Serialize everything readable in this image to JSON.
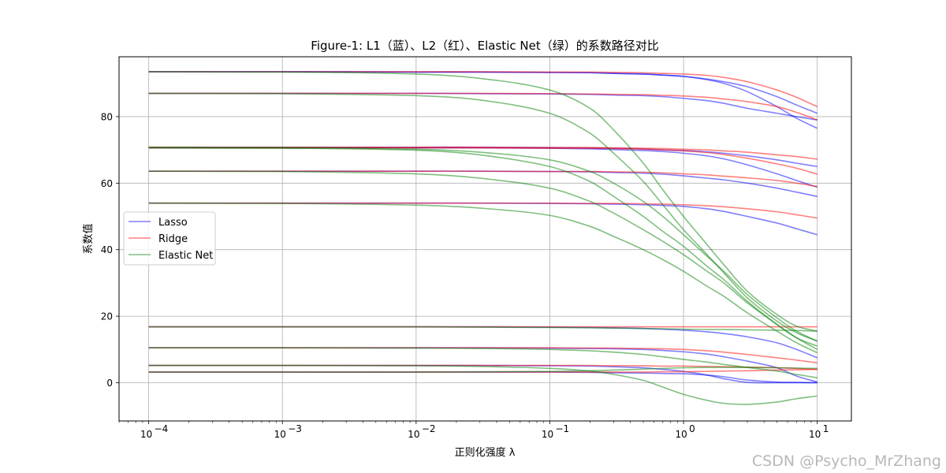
{
  "watermark": "CSDN @Psycho_MrZhang",
  "chart_data": {
    "type": "line",
    "title": "Figure-1: L1（蓝）、L2（红）、Elastic Net（绿）的系数路径对比",
    "xlabel": "正则化强度 λ",
    "ylabel": "系数值",
    "xscale": "log",
    "xlim": [
      6e-05,
      18
    ],
    "ylim": [
      -11.5,
      98
    ],
    "grid": true,
    "legend_position": "center-left",
    "x_ticks": [
      {
        "value": 0.0001,
        "base": "10",
        "exp": "−4"
      },
      {
        "value": 0.001,
        "base": "10",
        "exp": "−3"
      },
      {
        "value": 0.01,
        "base": "10",
        "exp": "−2"
      },
      {
        "value": 0.1,
        "base": "10",
        "exp": "−1"
      },
      {
        "value": 1,
        "base": "10",
        "exp": "0"
      },
      {
        "value": 10,
        "base": "10",
        "exp": "1"
      }
    ],
    "y_ticks": [
      0,
      20,
      40,
      60,
      80
    ],
    "lambda_grid": [
      0.0001,
      0.001,
      0.01,
      0.03,
      0.1,
      0.2,
      0.3,
      0.5,
      0.7,
      1,
      1.5,
      2,
      3,
      5,
      7,
      10
    ],
    "series": [
      {
        "name": "Lasso",
        "color": "#0000ff",
        "alpha": 0.5,
        "lines": [
          [
            93.5,
            93.5,
            93.4,
            93.4,
            93.3,
            93.2,
            93.0,
            92.8,
            92.5,
            92.1,
            91.3,
            90.5,
            89.0,
            86.0,
            83.5,
            81.0
          ],
          [
            93.5,
            93.5,
            93.4,
            93.4,
            93.3,
            93.2,
            93.0,
            92.8,
            92.5,
            92.1,
            91.1,
            90.0,
            87.5,
            83.0,
            79.5,
            76.5
          ],
          [
            87.0,
            87.0,
            87.0,
            86.9,
            86.8,
            86.7,
            86.5,
            86.3,
            86.0,
            85.5,
            84.8,
            84.0,
            82.5,
            81.0,
            80.0,
            79.0
          ],
          [
            70.8,
            70.8,
            70.8,
            70.8,
            70.7,
            70.6,
            70.5,
            70.3,
            70.0,
            69.8,
            69.4,
            69.0,
            68.2,
            67.0,
            66.0,
            65.0
          ],
          [
            70.6,
            70.6,
            70.6,
            70.6,
            70.5,
            70.3,
            70.1,
            69.8,
            69.5,
            69.0,
            68.2,
            67.3,
            65.5,
            62.8,
            60.8,
            58.8
          ],
          [
            63.6,
            63.6,
            63.6,
            63.6,
            63.5,
            63.4,
            63.2,
            63.0,
            62.7,
            62.2,
            61.5,
            61.0,
            60.0,
            58.5,
            57.3,
            56.0
          ],
          [
            54.0,
            54.0,
            54.0,
            54.0,
            53.9,
            53.8,
            53.7,
            53.5,
            53.3,
            53.0,
            52.3,
            51.5,
            50.0,
            48.0,
            46.3,
            44.5
          ],
          [
            16.8,
            16.8,
            16.8,
            16.8,
            16.7,
            16.6,
            16.5,
            16.3,
            16.1,
            15.8,
            15.3,
            14.8,
            13.8,
            12.0,
            10.0,
            7.5
          ],
          [
            10.5,
            10.5,
            10.5,
            10.5,
            10.4,
            10.3,
            10.2,
            10.0,
            9.7,
            9.3,
            8.6,
            7.8,
            6.5,
            4.5,
            2.0,
            0.2
          ],
          [
            5.2,
            5.2,
            5.2,
            5.2,
            5.1,
            5.0,
            4.8,
            4.5,
            4.0,
            3.4,
            2.3,
            1.2,
            0.1,
            0.0,
            0.0,
            0.0
          ],
          [
            3.2,
            3.2,
            3.2,
            3.2,
            3.2,
            3.1,
            3.0,
            2.9,
            2.8,
            2.7,
            2.3,
            1.8,
            0.8,
            0.2,
            0.1,
            0.0
          ]
        ]
      },
      {
        "name": "Ridge",
        "color": "#ff0000",
        "alpha": 0.5,
        "lines": [
          [
            93.5,
            93.5,
            93.5,
            93.5,
            93.4,
            93.4,
            93.3,
            93.2,
            93.0,
            92.8,
            92.4,
            91.8,
            90.5,
            88.0,
            85.8,
            83.0
          ],
          [
            87.0,
            87.0,
            87.0,
            87.0,
            86.9,
            86.8,
            86.7,
            86.6,
            86.4,
            86.2,
            85.8,
            85.3,
            84.5,
            83.0,
            81.3,
            79.0
          ],
          [
            70.8,
            70.8,
            70.8,
            70.8,
            70.7,
            70.7,
            70.6,
            70.5,
            70.4,
            70.2,
            70.0,
            69.7,
            69.3,
            68.5,
            68.0,
            67.2
          ],
          [
            70.6,
            70.6,
            70.6,
            70.6,
            70.5,
            70.5,
            70.4,
            70.2,
            70.0,
            69.7,
            69.2,
            68.6,
            67.5,
            65.8,
            64.5,
            62.7
          ],
          [
            63.6,
            63.6,
            63.6,
            63.6,
            63.5,
            63.5,
            63.4,
            63.3,
            63.1,
            62.8,
            62.5,
            62.1,
            61.6,
            60.8,
            60.0,
            59.0
          ],
          [
            54.0,
            54.0,
            54.0,
            54.0,
            54.0,
            53.9,
            53.9,
            53.8,
            53.7,
            53.5,
            53.2,
            52.9,
            52.3,
            51.4,
            50.5,
            49.5
          ],
          [
            16.8,
            16.8,
            16.8,
            16.8,
            16.8,
            16.8,
            16.8,
            16.8,
            16.8,
            16.8,
            16.8,
            16.8,
            16.8,
            16.8,
            16.8,
            16.8
          ],
          [
            10.5,
            10.5,
            10.5,
            10.5,
            10.5,
            10.4,
            10.4,
            10.3,
            10.2,
            10.0,
            9.6,
            9.2,
            8.5,
            7.5,
            6.8,
            6.0
          ],
          [
            5.2,
            5.2,
            5.2,
            5.2,
            5.2,
            5.2,
            5.1,
            5.1,
            5.0,
            5.0,
            4.9,
            4.8,
            4.7,
            4.5,
            4.3,
            4.0
          ],
          [
            3.2,
            3.2,
            3.2,
            3.2,
            3.2,
            3.2,
            3.2,
            3.2,
            3.3,
            3.3,
            3.4,
            3.5,
            3.6,
            3.8,
            3.9,
            4.0
          ]
        ]
      },
      {
        "name": "Elastic Net",
        "color": "#008000",
        "alpha": 0.5,
        "lines": [
          [
            93.5,
            93.4,
            92.8,
            91.5,
            88.0,
            82.5,
            76.0,
            66.0,
            58.0,
            50.0,
            41.5,
            35.5,
            27.5,
            20.5,
            17.0,
            15.5
          ],
          [
            87.0,
            86.9,
            86.3,
            85.0,
            81.0,
            75.0,
            69.0,
            60.5,
            53.5,
            46.0,
            38.5,
            33.0,
            25.5,
            18.5,
            15.0,
            12.5
          ],
          [
            70.8,
            70.7,
            70.2,
            69.3,
            67.0,
            63.5,
            60.0,
            54.5,
            50.0,
            44.5,
            38.0,
            33.5,
            26.5,
            19.5,
            15.5,
            12.5
          ],
          [
            70.6,
            70.5,
            69.9,
            68.5,
            65.0,
            60.5,
            56.0,
            50.0,
            45.5,
            41.0,
            35.0,
            31.0,
            24.5,
            17.5,
            13.5,
            11.0
          ],
          [
            63.6,
            63.5,
            62.8,
            61.5,
            58.5,
            54.5,
            51.0,
            46.0,
            42.5,
            38.5,
            33.5,
            30.0,
            24.0,
            17.5,
            13.5,
            10.0
          ],
          [
            54.0,
            53.9,
            53.4,
            52.5,
            50.3,
            47.0,
            44.0,
            40.0,
            37.0,
            33.5,
            29.0,
            26.0,
            21.0,
            15.5,
            12.0,
            9.0
          ],
          [
            16.8,
            16.8,
            16.8,
            16.7,
            16.6,
            16.5,
            16.4,
            16.3,
            16.2,
            16.1,
            16.0,
            16.0,
            15.9,
            15.8,
            15.7,
            15.5
          ],
          [
            10.5,
            10.5,
            10.4,
            10.3,
            10.0,
            9.6,
            9.2,
            8.5,
            7.8,
            7.0,
            6.2,
            5.5,
            4.6,
            3.5,
            2.5,
            1.5
          ],
          [
            5.2,
            5.2,
            5.1,
            4.9,
            4.3,
            3.5,
            2.5,
            0.7,
            -1.3,
            -3.5,
            -5.3,
            -6.2,
            -6.5,
            -5.8,
            -4.8,
            -4.0
          ],
          [
            3.2,
            3.2,
            3.2,
            3.3,
            3.4,
            3.6,
            3.8,
            4.1,
            4.3,
            4.5,
            4.6,
            4.6,
            4.6,
            4.5,
            4.4,
            4.3
          ]
        ]
      }
    ]
  }
}
